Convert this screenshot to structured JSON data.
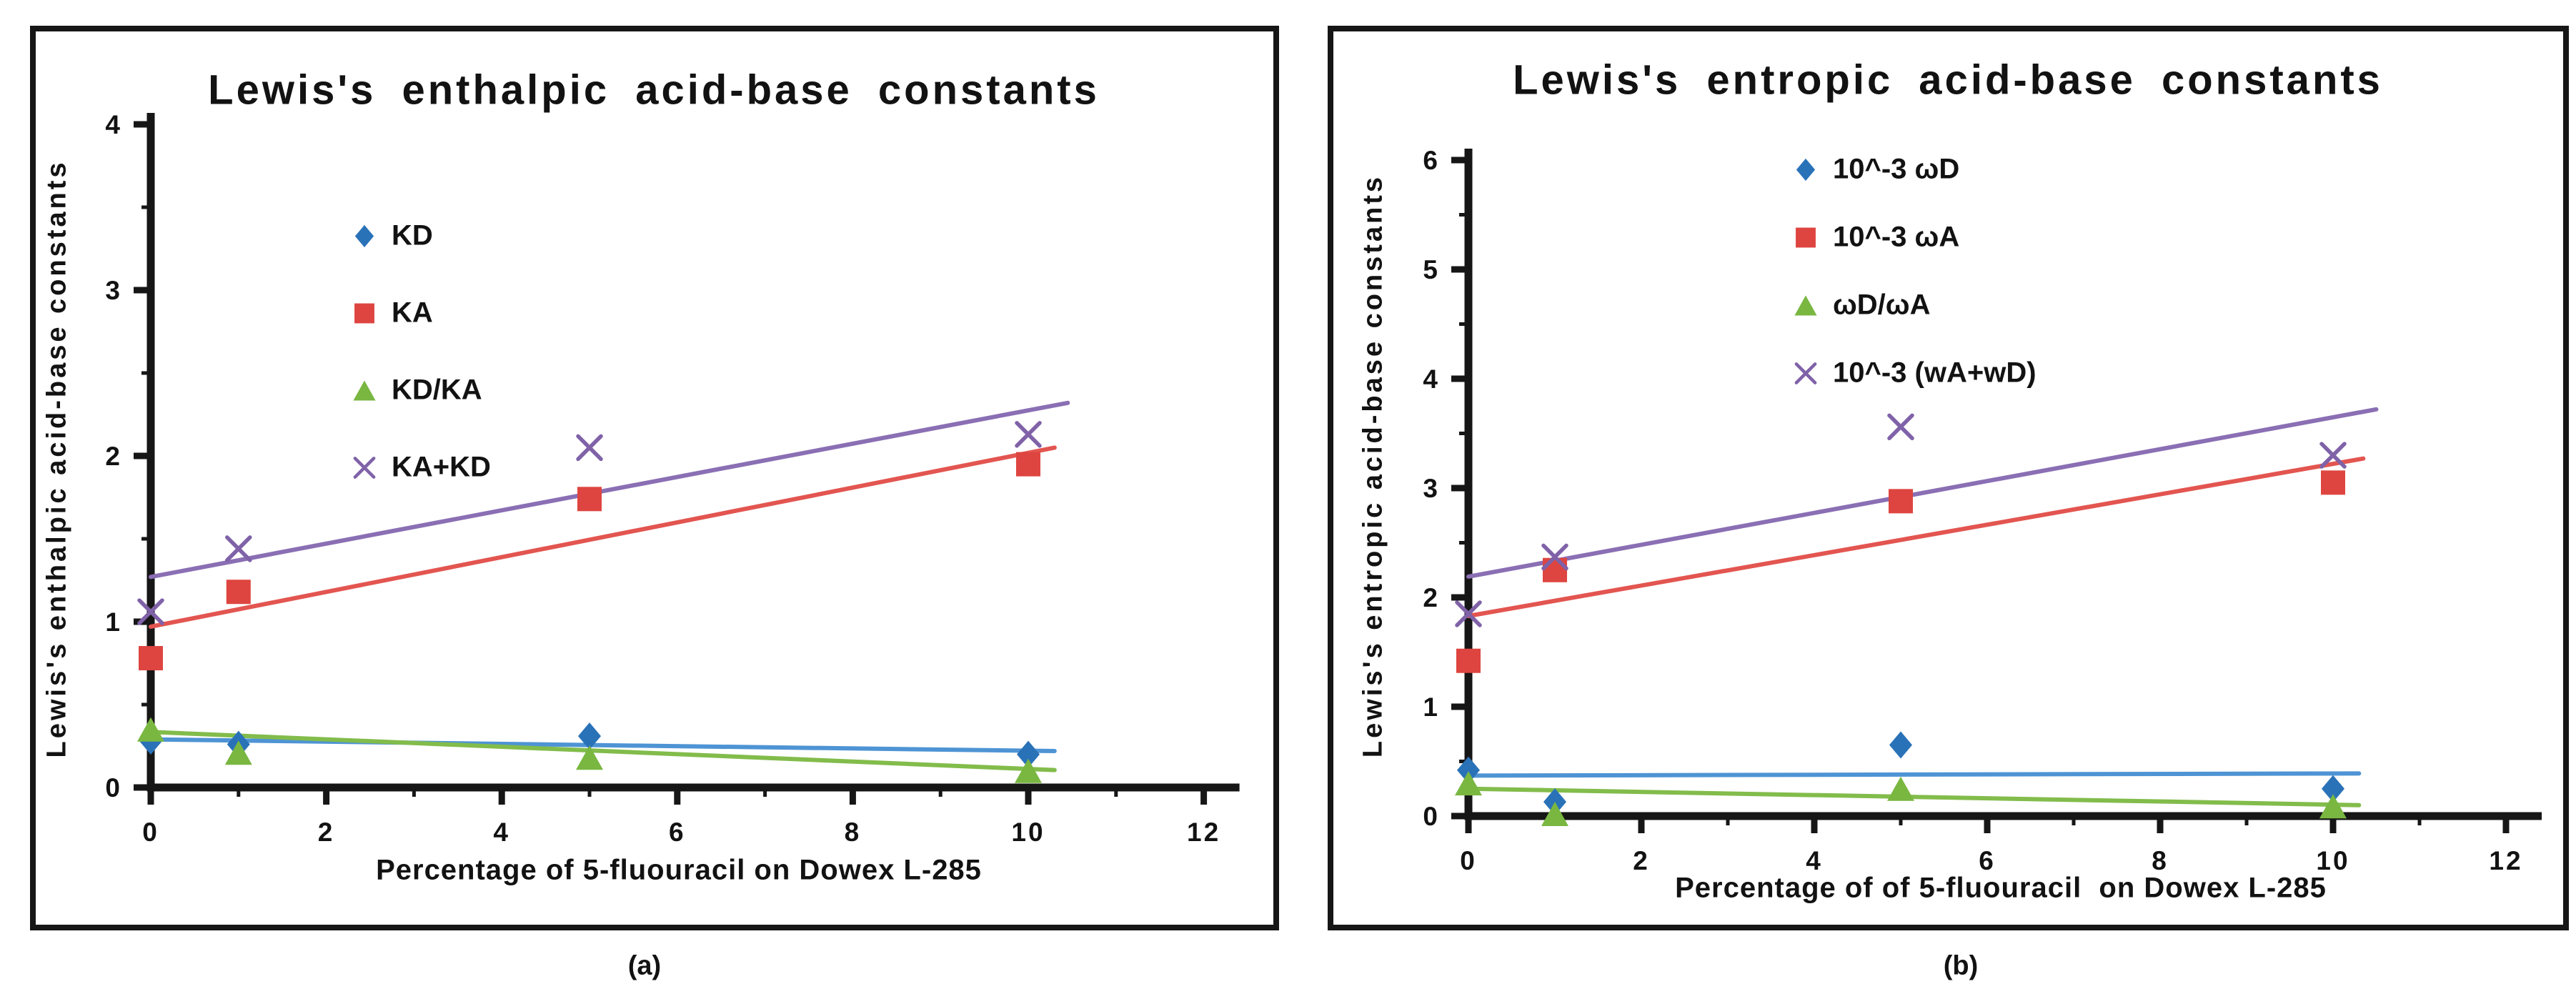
{
  "figure": {
    "background": "#ffffff",
    "ink": "#161616"
  },
  "chart_data": [
    {
      "type": "scatter",
      "title": "Lewis's enthalpic acid-base constants",
      "xlabel": "Percentage of 5-fluouracil on Dowex L-285",
      "ylabel": "Lewis's enthalpic acid-base constants",
      "caption": "(a)",
      "axes": {
        "xlim": [
          0,
          12
        ],
        "ylim": [
          0,
          4
        ],
        "xtick_step": 2,
        "ytick_step": 1,
        "x_minor_step": 1,
        "y_minor_step": 0.5,
        "xticks": [
          0,
          2,
          4,
          6,
          8,
          10,
          12
        ],
        "yticks": [
          0,
          1,
          2,
          3,
          4
        ],
        "grid": false
      },
      "legend_position": "upper-left-inside",
      "x_values": [
        0,
        1,
        5,
        10
      ],
      "series": [
        {
          "name": "KD",
          "marker": "diamond",
          "color": "#2A72B8",
          "line_color": "#4E94D4",
          "points": [
            [
              0,
              0.28
            ],
            [
              1,
              0.26
            ],
            [
              5,
              0.31
            ],
            [
              10,
              0.2
            ]
          ],
          "trend": [
            [
              0,
              0.29
            ],
            [
              10.3,
              0.22
            ]
          ]
        },
        {
          "name": "KA",
          "marker": "square",
          "color": "#DE4540",
          "line_color": "#E35550",
          "points": [
            [
              0,
              0.78
            ],
            [
              1,
              1.18
            ],
            [
              5,
              1.74
            ],
            [
              10,
              1.95
            ]
          ],
          "trend": [
            [
              0,
              0.97
            ],
            [
              10.3,
              2.05
            ]
          ]
        },
        {
          "name": "KD/KA",
          "marker": "triangle",
          "color": "#79B741",
          "line_color": "#82BC4B",
          "points": [
            [
              0,
              0.35
            ],
            [
              1,
              0.21
            ],
            [
              5,
              0.18
            ],
            [
              10,
              0.1
            ]
          ],
          "trend": [
            [
              0,
              0.335
            ],
            [
              10.3,
              0.105
            ]
          ]
        },
        {
          "name": "KA+KD",
          "marker": "x",
          "color": "#7F62A8",
          "line_color": "#8A6FB4",
          "points": [
            [
              0,
              1.06
            ],
            [
              1,
              1.44
            ],
            [
              5,
              2.05
            ],
            [
              10,
              2.13
            ]
          ],
          "trend": [
            [
              0,
              1.27
            ],
            [
              10.45,
              2.32
            ]
          ]
        }
      ]
    },
    {
      "type": "scatter",
      "title": "Lewis's entropic acid-base constants",
      "xlabel": "Percentage of of 5-fluouracil  on Dowex L-285",
      "ylabel": "Lewis's entropic acid-base constants",
      "caption": "(b)",
      "axes": {
        "xlim": [
          0,
          12
        ],
        "ylim": [
          0,
          6
        ],
        "xtick_step": 2,
        "ytick_step": 1,
        "x_minor_step": 1,
        "y_minor_step": 0.5,
        "xticks": [
          0,
          2,
          4,
          6,
          8,
          10,
          12
        ],
        "yticks": [
          0,
          1,
          2,
          3,
          4,
          5,
          6
        ],
        "grid": false
      },
      "legend_position": "upper-middle-inside",
      "x_values": [
        0,
        1,
        5,
        10
      ],
      "series": [
        {
          "name": "10^-3 ωD",
          "marker": "diamond",
          "color": "#2A72B8",
          "line_color": "#4E94D4",
          "points": [
            [
              0,
              0.42
            ],
            [
              1,
              0.13
            ],
            [
              5,
              0.65
            ],
            [
              10,
              0.25
            ]
          ],
          "trend": [
            [
              0,
              0.37
            ],
            [
              10.3,
              0.39
            ]
          ]
        },
        {
          "name": "10^-3 ωA",
          "marker": "square",
          "color": "#DE4540",
          "line_color": "#E35550",
          "points": [
            [
              0,
              1.42
            ],
            [
              1,
              2.25
            ],
            [
              5,
              2.88
            ],
            [
              10,
              3.05
            ]
          ],
          "trend": [
            [
              0,
              1.83
            ],
            [
              10.35,
              3.27
            ]
          ]
        },
        {
          "name": "ωD/ωA",
          "marker": "triangle",
          "color": "#79B741",
          "line_color": "#82BC4B",
          "points": [
            [
              0,
              0.3
            ],
            [
              1,
              0.02
            ],
            [
              5,
              0.25
            ],
            [
              10,
              0.09
            ]
          ],
          "trend": [
            [
              0,
              0.25
            ],
            [
              10.3,
              0.1
            ]
          ]
        },
        {
          "name": "10^-3 (wA+wD)",
          "marker": "x",
          "color": "#7F62A8",
          "line_color": "#8A6FB4",
          "points": [
            [
              0,
              1.85
            ],
            [
              1,
              2.37
            ],
            [
              5,
              3.56
            ],
            [
              10,
              3.3
            ]
          ],
          "trend": [
            [
              0,
              2.19
            ],
            [
              10.5,
              3.72
            ]
          ]
        }
      ]
    }
  ]
}
